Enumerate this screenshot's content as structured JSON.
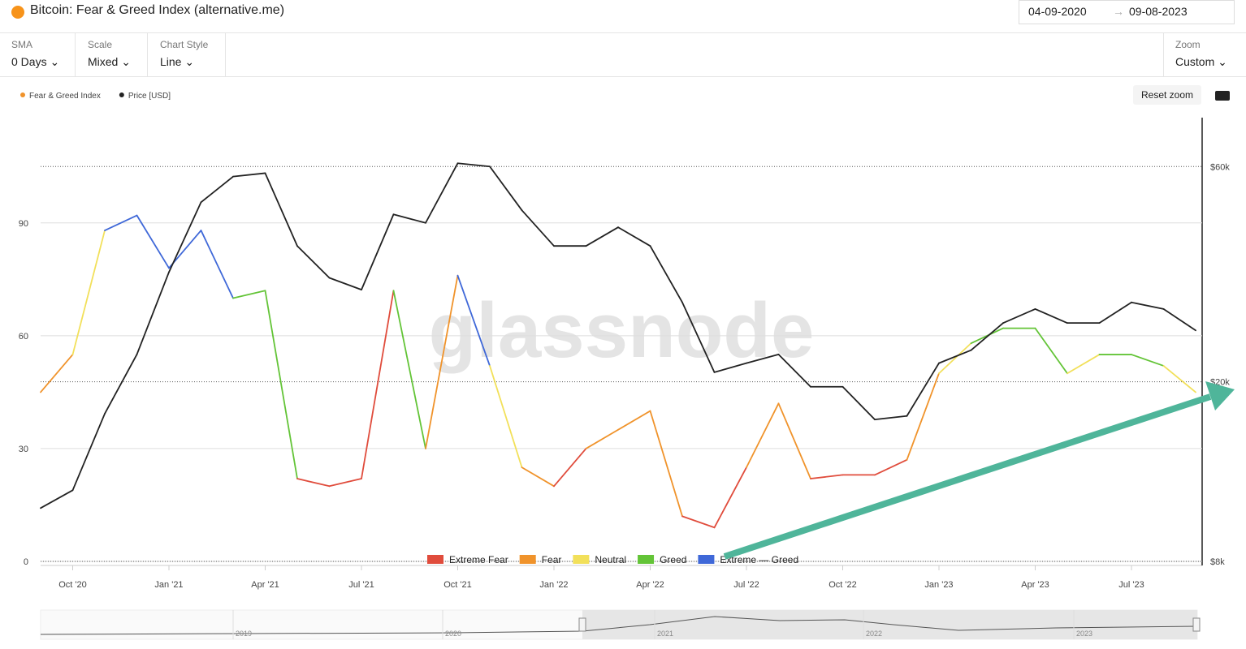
{
  "header": {
    "title": "Bitcoin: Fear & Greed Index (alternative.me)",
    "date_from": "04-09-2020",
    "date_to": "09-08-2023"
  },
  "controls": [
    {
      "label": "SMA",
      "value": "0 Days"
    },
    {
      "label": "Scale",
      "value": "Mixed"
    },
    {
      "label": "Chart Style",
      "value": "Line"
    }
  ],
  "zoom": {
    "label": "Zoom",
    "value": "Custom"
  },
  "reset_zoom": "Reset zoom",
  "watermark": "glassnode",
  "navigator_years": [
    "2019",
    "2020",
    "2021",
    "2022",
    "2023"
  ],
  "chart_data": {
    "type": "line",
    "x": [
      "2020-09",
      "2020-10",
      "2020-11",
      "2020-12",
      "2021-01",
      "2021-02",
      "2021-03",
      "2021-04",
      "2021-05",
      "2021-06",
      "2021-07",
      "2021-08",
      "2021-09",
      "2021-10",
      "2021-11",
      "2021-12",
      "2022-01",
      "2022-02",
      "2022-03",
      "2022-04",
      "2022-05",
      "2022-06",
      "2022-07",
      "2022-08",
      "2022-09",
      "2022-10",
      "2022-11",
      "2022-12",
      "2023-01",
      "2023-02",
      "2023-03",
      "2023-04",
      "2023-05",
      "2023-06",
      "2023-07",
      "2023-08",
      "2023-09"
    ],
    "xlim": [
      "2020-09",
      "2023-09"
    ],
    "xticks": [
      {
        "value": "2020-10",
        "label": "Oct '20"
      },
      {
        "value": "2021-01",
        "label": "Jan '21"
      },
      {
        "value": "2021-04",
        "label": "Apr '21"
      },
      {
        "value": "2021-07",
        "label": "Jul '21"
      },
      {
        "value": "2021-10",
        "label": "Oct '21"
      },
      {
        "value": "2022-01",
        "label": "Jan '22"
      },
      {
        "value": "2022-04",
        "label": "Apr '22"
      },
      {
        "value": "2022-07",
        "label": "Jul '22"
      },
      {
        "value": "2022-10",
        "label": "Oct '22"
      },
      {
        "value": "2023-01",
        "label": "Jan '23"
      },
      {
        "value": "2023-04",
        "label": "Apr '23"
      },
      {
        "value": "2023-07",
        "label": "Jul '23"
      }
    ],
    "ylim": [
      0,
      118
    ],
    "yticks": [
      0,
      30,
      60,
      90
    ],
    "y2lim": [
      8000,
      77000
    ],
    "y2log": true,
    "y2ticks": [
      {
        "value": 8000,
        "label": "$8k"
      },
      {
        "value": 20000,
        "label": "$20k"
      },
      {
        "value": 60000,
        "label": "$60k"
      }
    ],
    "series": [
      {
        "name": "Fear & Greed Index",
        "color": "#f0932b",
        "values": [
          45,
          55,
          88,
          92,
          78,
          88,
          70,
          72,
          22,
          20,
          22,
          72,
          30,
          76,
          52,
          25,
          20,
          30,
          35,
          40,
          12,
          9,
          25,
          42,
          22,
          23,
          23,
          27,
          50,
          58,
          62,
          62,
          50,
          55,
          55,
          52,
          45
        ],
        "point_colors": [
          "#f0932b",
          "#f2e05a",
          "#3f68d8",
          "#3f68d8",
          "#3f68d8",
          "#3f68d8",
          "#63c437",
          "#63c437",
          "#e04c3c",
          "#e04c3c",
          "#e04c3c",
          "#63c437",
          "#f0932b",
          "#3f68d8",
          "#f2e05a",
          "#f0932b",
          "#e04c3c",
          "#f0932b",
          "#f0932b",
          "#f0932b",
          "#e04c3c",
          "#e04c3c",
          "#f0932b",
          "#f0932b",
          "#e04c3c",
          "#e04c3c",
          "#e04c3c",
          "#f0932b",
          "#f2e05a",
          "#63c437",
          "#63c437",
          "#63c437",
          "#f2e05a",
          "#63c437",
          "#63c437",
          "#f2e05a",
          "#f2e05a"
        ]
      },
      {
        "name": "Price [USD]",
        "color": "#222222",
        "axis": "y2",
        "values": [
          10500,
          11500,
          17000,
          23000,
          35000,
          50000,
          57000,
          58000,
          40000,
          34000,
          32000,
          47000,
          45000,
          61000,
          60000,
          48000,
          40000,
          40000,
          44000,
          40000,
          30000,
          21000,
          22000,
          23000,
          19500,
          19500,
          16500,
          16800,
          22000,
          23500,
          27000,
          29000,
          27000,
          27000,
          30000,
          29000,
          26000
        ]
      }
    ],
    "zones": [
      {
        "name": "Extreme Fear",
        "color": "#e04c3c"
      },
      {
        "name": "Fear",
        "color": "#f0932b"
      },
      {
        "name": "Neutral",
        "color": "#f2e05a"
      },
      {
        "name": "Greed",
        "color": "#63c437"
      },
      {
        "name": "Extreme — Greed",
        "color": "#3f68d8"
      }
    ]
  }
}
